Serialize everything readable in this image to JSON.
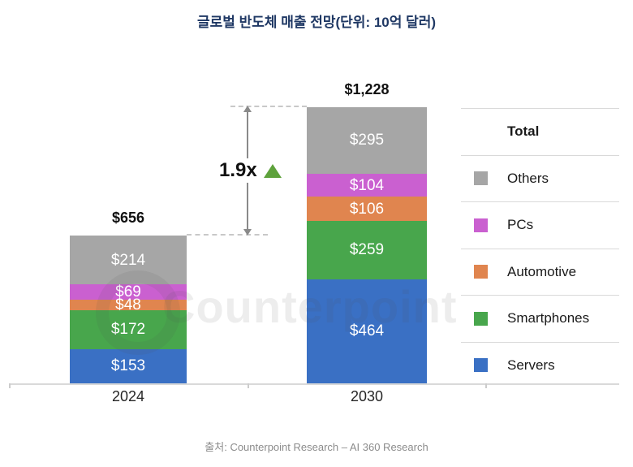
{
  "title": "글로벌 반도체 매출 전망(단위: 10억 달러)",
  "footer": "출처: Counterpoint Research – AI 360 Research",
  "watermark": {
    "text": "Counterpoint"
  },
  "growth": {
    "label": "1.9x",
    "icon": "up-triangle",
    "triangle_color": "#5ea23c"
  },
  "legend": {
    "header": "Total",
    "items": [
      {
        "label": "Others",
        "color": "#a6a6a6"
      },
      {
        "label": "PCs",
        "color": "#ca60d0"
      },
      {
        "label": "Automotive",
        "color": "#e0854f"
      },
      {
        "label": "Smartphones",
        "color": "#48a64c"
      },
      {
        "label": "Servers",
        "color": "#3a70c4"
      }
    ]
  },
  "colors": {
    "title": "#1f3864",
    "axis": "#d9d9d9",
    "arrow": "#8a8a8a",
    "value_label": "#ffffff",
    "total_label": "#111111"
  },
  "chart_data": {
    "type": "bar",
    "stacked": true,
    "title": "글로벌 반도체 매출 전망(단위: 10억 달러)",
    "unit": "10억 달러 (billion USD)",
    "categories": [
      "2024",
      "2030"
    ],
    "totals": [
      656,
      1228
    ],
    "total_labels": [
      "$656",
      "$1,228"
    ],
    "series": [
      {
        "name": "Servers",
        "color": "#3a70c4",
        "values": [
          153,
          464
        ]
      },
      {
        "name": "Smartphones",
        "color": "#48a64c",
        "values": [
          172,
          259
        ]
      },
      {
        "name": "Automotive",
        "color": "#e0854f",
        "values": [
          48,
          106
        ]
      },
      {
        "name": "PCs",
        "color": "#ca60d0",
        "values": [
          69,
          104
        ]
      },
      {
        "name": "Others",
        "color": "#a6a6a6",
        "values": [
          214,
          295
        ]
      }
    ],
    "annotations": [
      {
        "text": "1.9x",
        "meaning": "2030 total vs 2024 total"
      }
    ],
    "legend_position": "right",
    "grid": false,
    "value_prefix": "$"
  }
}
